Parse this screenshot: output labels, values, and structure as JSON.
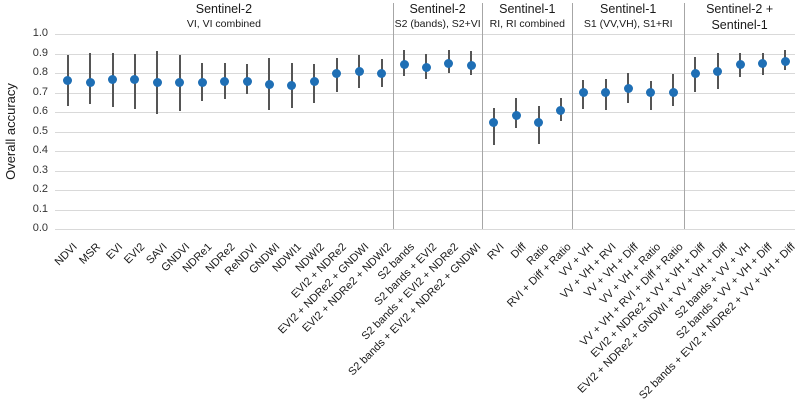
{
  "chart_data": {
    "type": "scatter",
    "title": "",
    "ylabel": "Overall accuracy",
    "ylim": [
      0.0,
      1.0
    ],
    "ytick_step": 0.1,
    "grid": true,
    "legend": "none",
    "marker_color": "#1f6fb5",
    "errorbar_color": "#555555",
    "gridline_color": "#d9d9d9",
    "divider_color": "#a6a6a6",
    "groups": [
      {
        "header": "Sentinel-2",
        "subheader": "VI, VI combined",
        "subheader_large": false,
        "points": [
          {
            "label": "NDVI",
            "value": 0.76,
            "low": 0.63,
            "high": 0.89
          },
          {
            "label": "MSR",
            "value": 0.75,
            "low": 0.64,
            "high": 0.905
          },
          {
            "label": "EVI",
            "value": 0.765,
            "low": 0.625,
            "high": 0.905
          },
          {
            "label": "EVI2",
            "value": 0.765,
            "low": 0.615,
            "high": 0.9
          },
          {
            "label": "SAVI",
            "value": 0.75,
            "low": 0.59,
            "high": 0.915
          },
          {
            "label": "GNDVI",
            "value": 0.75,
            "low": 0.605,
            "high": 0.89
          },
          {
            "label": "NDRe1",
            "value": 0.75,
            "low": 0.655,
            "high": 0.85
          },
          {
            "label": "NDRe2",
            "value": 0.755,
            "low": 0.665,
            "high": 0.85
          },
          {
            "label": "ReNDVI",
            "value": 0.755,
            "low": 0.69,
            "high": 0.845
          },
          {
            "label": "GNDWI",
            "value": 0.74,
            "low": 0.61,
            "high": 0.875
          },
          {
            "label": "NDWI1",
            "value": 0.735,
            "low": 0.62,
            "high": 0.85
          },
          {
            "label": "NDWI2",
            "value": 0.755,
            "low": 0.645,
            "high": 0.845
          },
          {
            "label": "EVI2 + NDRe2",
            "value": 0.8,
            "low": 0.705,
            "high": 0.875
          },
          {
            "label": "EVI2 + NDRe2 + GNDWI",
            "value": 0.81,
            "low": 0.725,
            "high": 0.89
          },
          {
            "label": "EVI2 + NDRe2 + NDWI2",
            "value": 0.8,
            "low": 0.73,
            "high": 0.87
          }
        ]
      },
      {
        "header": "Sentinel-2",
        "subheader": "S2 (bands), S2+VI",
        "subheader_large": false,
        "points": [
          {
            "label": "S2 bands",
            "value": 0.845,
            "low": 0.785,
            "high": 0.92
          },
          {
            "label": "S2 bands + EVI2",
            "value": 0.83,
            "low": 0.77,
            "high": 0.9
          },
          {
            "label": "S2 bands + EVI2 + NDRe2",
            "value": 0.85,
            "low": 0.8,
            "high": 0.92
          },
          {
            "label": "S2 bands + EVI2 + NDRe2 + GNDWI",
            "value": 0.84,
            "low": 0.79,
            "high": 0.915
          }
        ]
      },
      {
        "header": "Sentinel-1",
        "subheader": "RI, RI combined",
        "subheader_large": false,
        "points": [
          {
            "label": "RVI",
            "value": 0.545,
            "low": 0.43,
            "high": 0.62
          },
          {
            "label": "Diff",
            "value": 0.58,
            "low": 0.52,
            "high": 0.67
          },
          {
            "label": "Ratio",
            "value": 0.545,
            "low": 0.435,
            "high": 0.63
          },
          {
            "label": "RVI + Diff + Ratio",
            "value": 0.61,
            "low": 0.555,
            "high": 0.67
          }
        ]
      },
      {
        "header": "Sentinel-1",
        "subheader": "S1 (VV,VH), S1+RI",
        "subheader_large": false,
        "points": [
          {
            "label": "VV + VH",
            "value": 0.7,
            "low": 0.615,
            "high": 0.765
          },
          {
            "label": "VV + VH + RVI",
            "value": 0.7,
            "low": 0.61,
            "high": 0.77
          },
          {
            "label": "VV + VH + Diff",
            "value": 0.72,
            "low": 0.645,
            "high": 0.8
          },
          {
            "label": "VV + VH + Ratio",
            "value": 0.7,
            "low": 0.61,
            "high": 0.76
          },
          {
            "label": "VV + VH + RVI + Diff + Ratio",
            "value": 0.7,
            "low": 0.63,
            "high": 0.795
          }
        ]
      },
      {
        "header": "Sentinel-2 +",
        "subheader": "Sentinel-1",
        "subheader_large": true,
        "points": [
          {
            "label": "EVI2 + NDRe2 + VV + VH + Diff",
            "value": 0.8,
            "low": 0.7,
            "high": 0.88
          },
          {
            "label": "EVI2 + NDRe2 + GNDWI + VV + VH + Diff",
            "value": 0.81,
            "low": 0.72,
            "high": 0.905
          },
          {
            "label": "S2 bands + VV + VH",
            "value": 0.845,
            "low": 0.78,
            "high": 0.905
          },
          {
            "label": "S2 bands + VV + VH + Diff",
            "value": 0.85,
            "low": 0.79,
            "high": 0.905
          },
          {
            "label": "S2 bands + EVI2 + NDRe2 + VV + VH + Diff",
            "value": 0.86,
            "low": 0.815,
            "high": 0.92
          }
        ]
      }
    ]
  }
}
